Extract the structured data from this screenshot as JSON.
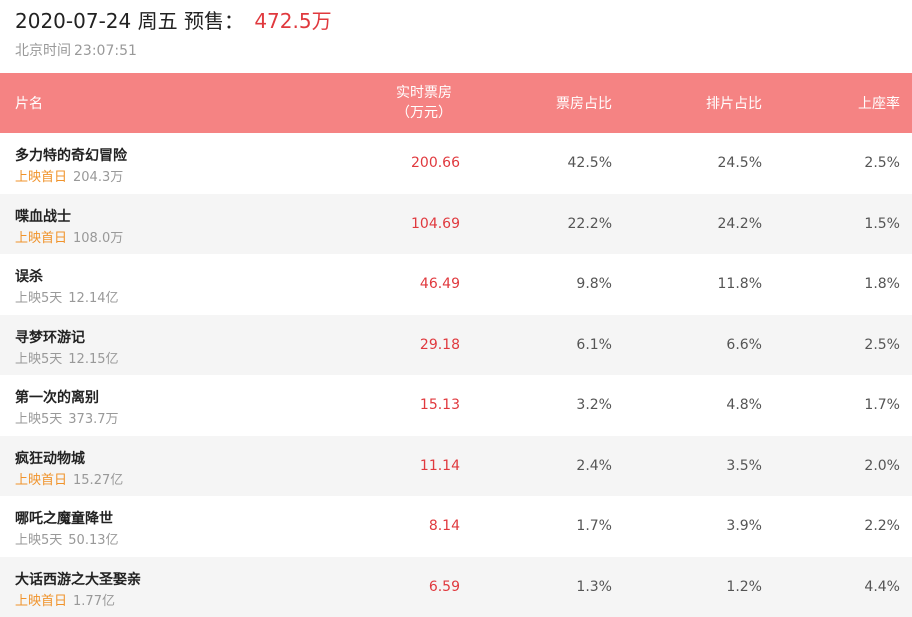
{
  "header": {
    "date": "2020-07-24",
    "weekday": "周五",
    "label": "预售：",
    "amount": "472.5万",
    "time_label": "北京时间",
    "time": "23:07:51"
  },
  "table": {
    "columns": {
      "name": "片名",
      "boxoffice_line1": "实时票房",
      "boxoffice_line2": "（万元）",
      "box_share": "票房占比",
      "schedule_share": "排片占比",
      "seat_rate": "上座率"
    },
    "rows": [
      {
        "name": "多力特的奇幻冒险",
        "days": "上映首日",
        "first_day": true,
        "total": "204.3万",
        "boxoffice": "200.66",
        "box_share": "42.5%",
        "schedule_share": "24.5%",
        "seat_rate": "2.5%"
      },
      {
        "name": "喋血战士",
        "days": "上映首日",
        "first_day": true,
        "total": "108.0万",
        "boxoffice": "104.69",
        "box_share": "22.2%",
        "schedule_share": "24.2%",
        "seat_rate": "1.5%"
      },
      {
        "name": "误杀",
        "days": "上映5天",
        "first_day": false,
        "total": "12.14亿",
        "boxoffice": "46.49",
        "box_share": "9.8%",
        "schedule_share": "11.8%",
        "seat_rate": "1.8%"
      },
      {
        "name": "寻梦环游记",
        "days": "上映5天",
        "first_day": false,
        "total": "12.15亿",
        "boxoffice": "29.18",
        "box_share": "6.1%",
        "schedule_share": "6.6%",
        "seat_rate": "2.5%"
      },
      {
        "name": "第一次的离别",
        "days": "上映5天",
        "first_day": false,
        "total": "373.7万",
        "boxoffice": "15.13",
        "box_share": "3.2%",
        "schedule_share": "4.8%",
        "seat_rate": "1.7%"
      },
      {
        "name": "疯狂动物城",
        "days": "上映首日",
        "first_day": true,
        "total": "15.27亿",
        "boxoffice": "11.14",
        "box_share": "2.4%",
        "schedule_share": "3.5%",
        "seat_rate": "2.0%"
      },
      {
        "name": "哪吒之魔童降世",
        "days": "上映5天",
        "first_day": false,
        "total": "50.13亿",
        "boxoffice": "8.14",
        "box_share": "1.7%",
        "schedule_share": "3.9%",
        "seat_rate": "2.2%"
      },
      {
        "name": "大话西游之大圣娶亲",
        "days": "上映首日",
        "first_day": true,
        "total": "1.77亿",
        "boxoffice": "6.59",
        "box_share": "1.3%",
        "schedule_share": "1.2%",
        "seat_rate": "4.4%"
      }
    ]
  },
  "colors": {
    "header_bg": "#f58383",
    "boxoffice_red": "#e0393e",
    "first_day_orange": "#f0932b"
  }
}
